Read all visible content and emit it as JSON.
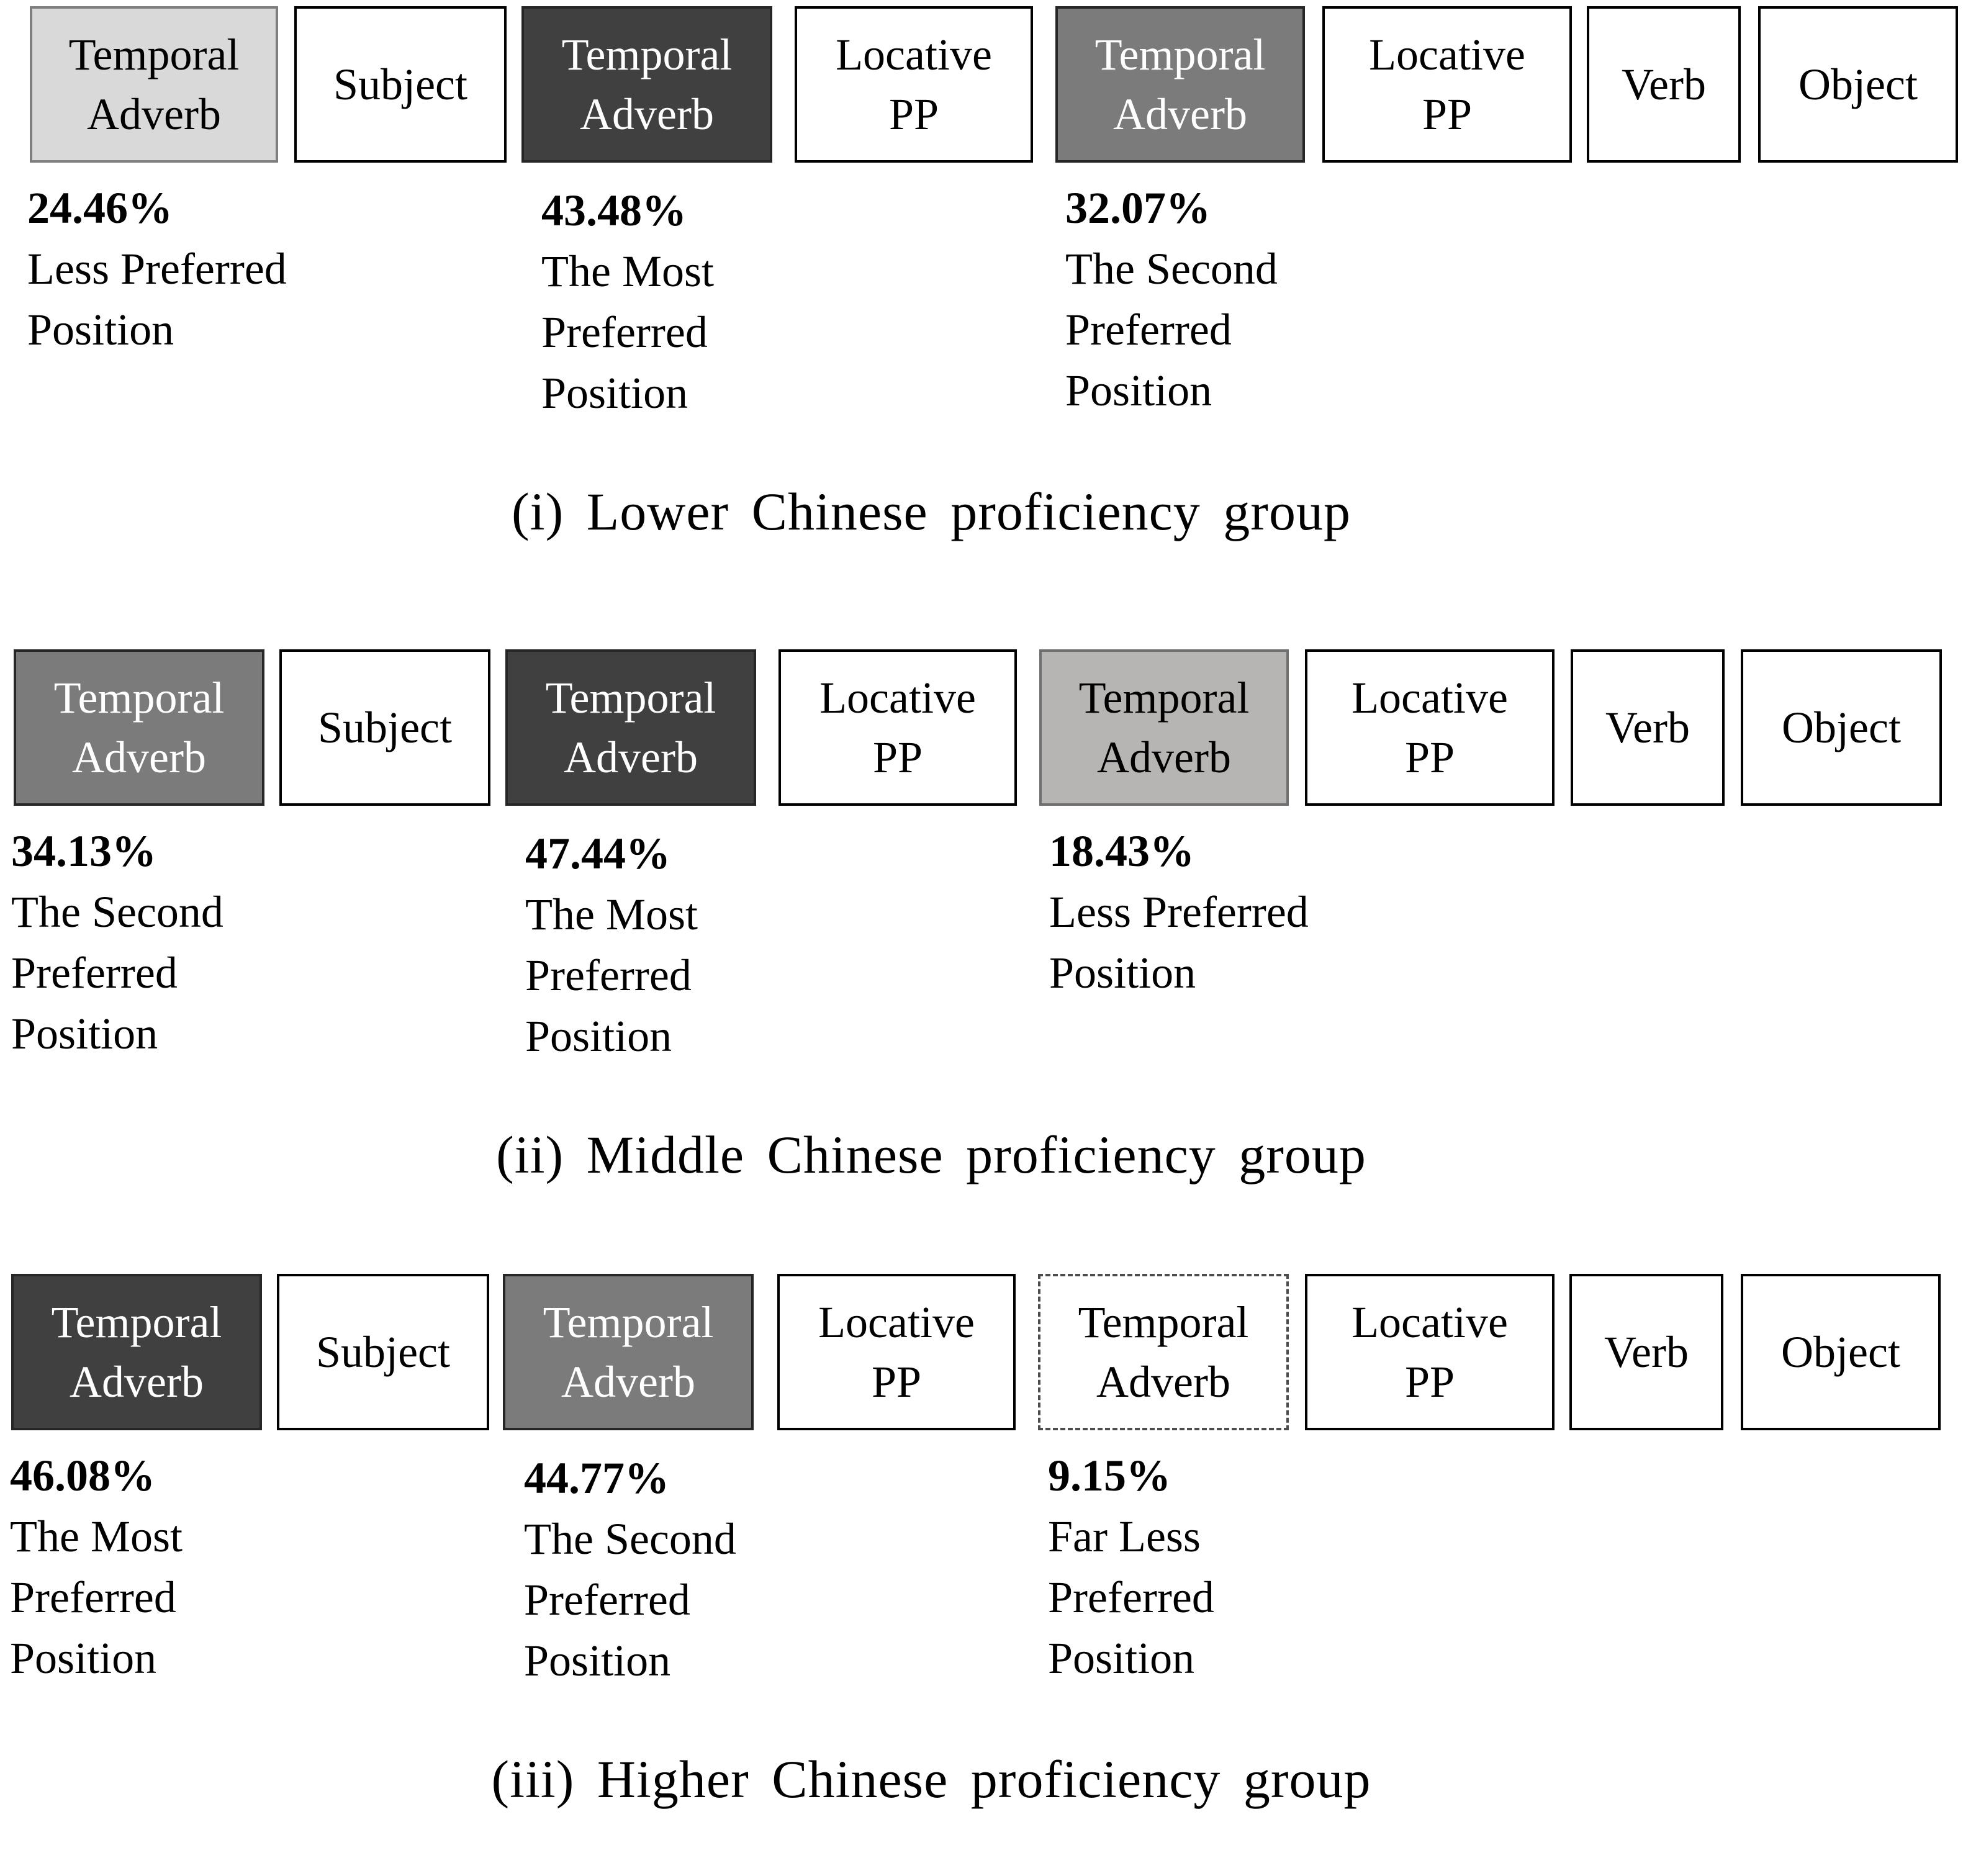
{
  "colors": {
    "light": "#d9d9d9",
    "pale": "#b7b5b4",
    "mid": "#7b7b7b",
    "dark": "#404040",
    "border": "#000000"
  },
  "panels": [
    {
      "caption": "(i) Lower Chinese proficiency group",
      "boxes": [
        {
          "text": "Temporal\nAdverb",
          "shade": "light"
        },
        {
          "text": "Subject",
          "shade": "none"
        },
        {
          "text": "Temporal\nAdverb",
          "shade": "dark"
        },
        {
          "text": "Locative\nPP",
          "shade": "none"
        },
        {
          "text": "Temporal\nAdverb",
          "shade": "mid"
        },
        {
          "text": "Locative\nPP",
          "shade": "none"
        },
        {
          "text": "Verb",
          "shade": "none"
        },
        {
          "text": "Object",
          "shade": "none"
        }
      ],
      "labels": [
        {
          "pct": "24.46%",
          "desc": "Less Preferred\nPosition"
        },
        {
          "pct": "43.48%",
          "desc": "The Most\nPreferred\nPosition"
        },
        {
          "pct": "32.07%",
          "desc": "The Second\nPreferred\nPosition"
        }
      ]
    },
    {
      "caption": "(ii) Middle Chinese proficiency group",
      "boxes": [
        {
          "text": "Temporal\nAdverb",
          "shade": "mid"
        },
        {
          "text": "Subject",
          "shade": "none"
        },
        {
          "text": "Temporal\nAdverb",
          "shade": "dark"
        },
        {
          "text": "Locative\nPP",
          "shade": "none"
        },
        {
          "text": "Temporal\nAdverb",
          "shade": "pale"
        },
        {
          "text": "Locative\nPP",
          "shade": "none"
        },
        {
          "text": "Verb",
          "shade": "none"
        },
        {
          "text": "Object",
          "shade": "none"
        }
      ],
      "labels": [
        {
          "pct": "34.13%",
          "desc": "The Second\nPreferred\nPosition"
        },
        {
          "pct": "47.44%",
          "desc": "The Most\nPreferred\nPosition"
        },
        {
          "pct": "18.43%",
          "desc": "Less Preferred\nPosition"
        }
      ]
    },
    {
      "caption": "(iii) Higher Chinese proficiency group",
      "boxes": [
        {
          "text": "Temporal\nAdverb",
          "shade": "dark"
        },
        {
          "text": "Subject",
          "shade": "none"
        },
        {
          "text": "Temporal\nAdverb",
          "shade": "mid"
        },
        {
          "text": "Locative\nPP",
          "shade": "none"
        },
        {
          "text": "Temporal\nAdverb",
          "shade": "dashed"
        },
        {
          "text": "Locative\nPP",
          "shade": "none"
        },
        {
          "text": "Verb",
          "shade": "none"
        },
        {
          "text": "Object",
          "shade": "none"
        }
      ],
      "labels": [
        {
          "pct": "46.08%",
          "desc": "The Most\nPreferred\nPosition"
        },
        {
          "pct": "44.77%",
          "desc": "The Second\nPreferred\nPosition"
        },
        {
          "pct": "9.15%",
          "desc": "Far Less\nPreferred\nPosition"
        }
      ]
    }
  ]
}
